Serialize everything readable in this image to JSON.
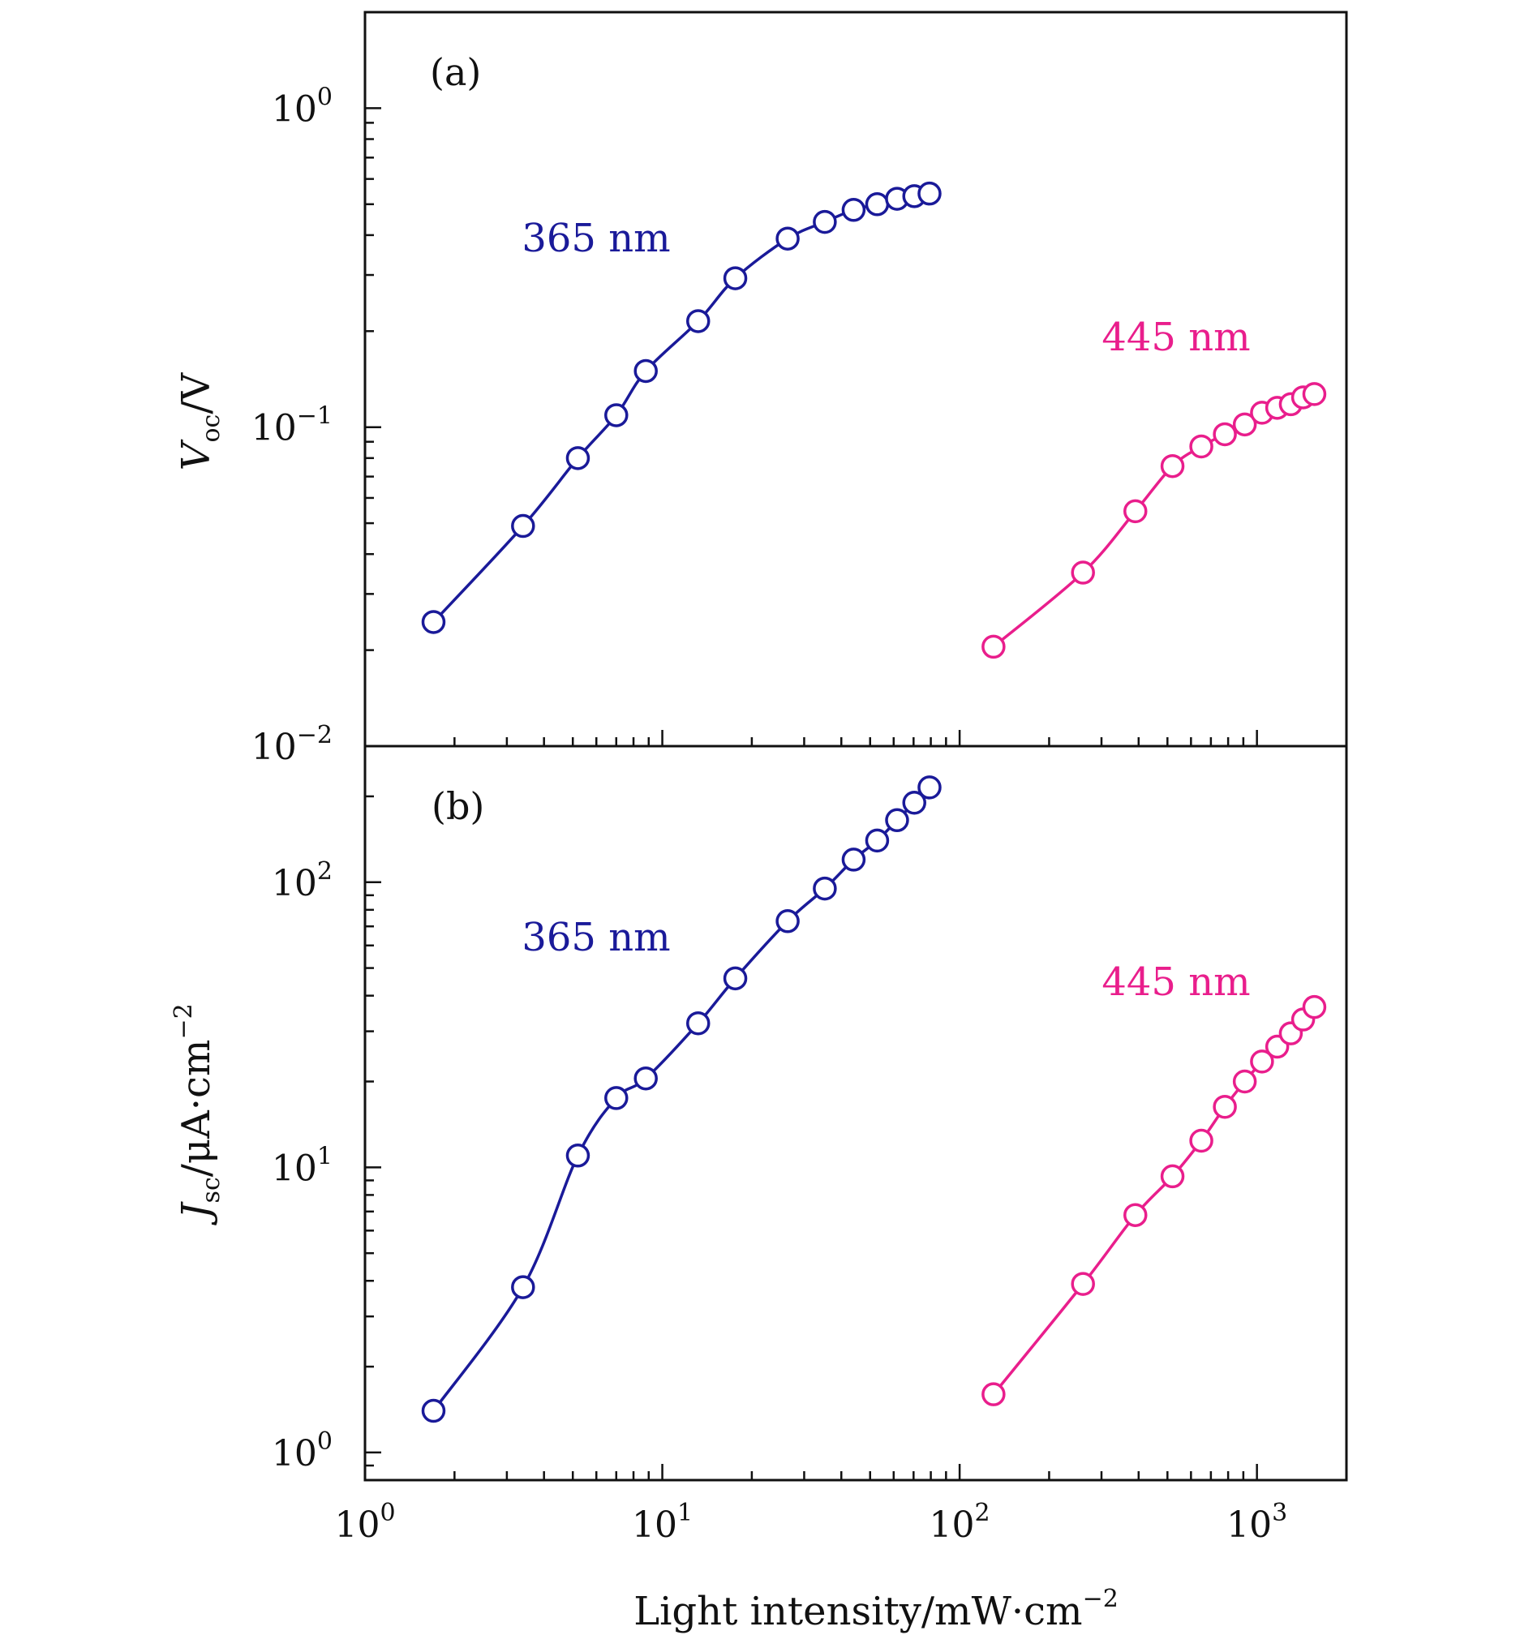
{
  "chart_data": [
    {
      "type": "line",
      "panel_label": "(a)",
      "xscale": "log",
      "yscale": "log",
      "xlim": [
        1,
        2000
      ],
      "ylim": [
        0.01,
        2
      ],
      "ylabel": {
        "symbol": "V",
        "subscript": "oc",
        "unit": "/V"
      },
      "ytick_labels": [
        {
          "value": 1,
          "base": "10",
          "exp": "0"
        },
        {
          "value": 0.1,
          "base": "10",
          "exp": "−1"
        },
        {
          "value": 0.01,
          "base": "10",
          "exp": "−2"
        }
      ],
      "series": [
        {
          "name": "365 nm",
          "label": "365 nm",
          "color": "#1a1a99",
          "x": [
            1.7,
            3.4,
            5.2,
            7.0,
            8.8,
            13.2,
            17.6,
            26.4,
            35.2,
            44.0,
            52.8,
            61.6,
            70.4,
            79.2
          ],
          "y": [
            0.0245,
            0.049,
            0.08,
            0.109,
            0.15,
            0.215,
            0.293,
            0.39,
            0.44,
            0.48,
            0.5,
            0.52,
            0.53,
            0.54
          ]
        },
        {
          "name": "445 nm",
          "label": "445 nm",
          "color": "#e91e8c",
          "x": [
            130,
            260,
            390,
            520,
            650,
            780,
            910,
            1040,
            1170,
            1300,
            1430,
            1560
          ],
          "y": [
            0.0205,
            0.035,
            0.0545,
            0.0755,
            0.087,
            0.095,
            0.102,
            0.111,
            0.115,
            0.118,
            0.124,
            0.127
          ]
        }
      ]
    },
    {
      "type": "line",
      "panel_label": "(b)",
      "xscale": "log",
      "yscale": "log",
      "xlim": [
        1,
        2000
      ],
      "ylim": [
        0.8,
        300
      ],
      "xlabel": {
        "text": "Light intensity/mW·cm",
        "exp": "−2"
      },
      "xtick_labels": [
        {
          "value": 1,
          "base": "10",
          "exp": "0"
        },
        {
          "value": 10,
          "base": "10",
          "exp": "1"
        },
        {
          "value": 100,
          "base": "10",
          "exp": "2"
        },
        {
          "value": 1000,
          "base": "10",
          "exp": "3"
        }
      ],
      "ylabel": {
        "symbol": "J",
        "subscript": "sc",
        "unit": "/μA·cm",
        "exp": "−2"
      },
      "ytick_labels": [
        {
          "value": 100,
          "base": "10",
          "exp": "2"
        },
        {
          "value": 10,
          "base": "10",
          "exp": "1"
        },
        {
          "value": 1,
          "base": "10",
          "exp": "0"
        }
      ],
      "series": [
        {
          "name": "365 nm",
          "label": "365 nm",
          "color": "#1a1a99",
          "x": [
            1.7,
            3.4,
            5.2,
            7.0,
            8.8,
            13.2,
            17.6,
            26.4,
            35.2,
            44.0,
            52.8,
            61.6,
            70.4,
            79.2
          ],
          "y": [
            1.4,
            3.8,
            11,
            17.5,
            20.5,
            32,
            46,
            73,
            95,
            120,
            140,
            165,
            190,
            215
          ]
        },
        {
          "name": "445 nm",
          "label": "445 nm",
          "color": "#e91e8c",
          "x": [
            130,
            260,
            390,
            520,
            650,
            780,
            910,
            1040,
            1170,
            1300,
            1430,
            1560
          ],
          "y": [
            1.6,
            3.9,
            6.8,
            9.3,
            12.4,
            16.3,
            20,
            23.5,
            26.5,
            29.5,
            33,
            36.5
          ]
        }
      ]
    }
  ]
}
